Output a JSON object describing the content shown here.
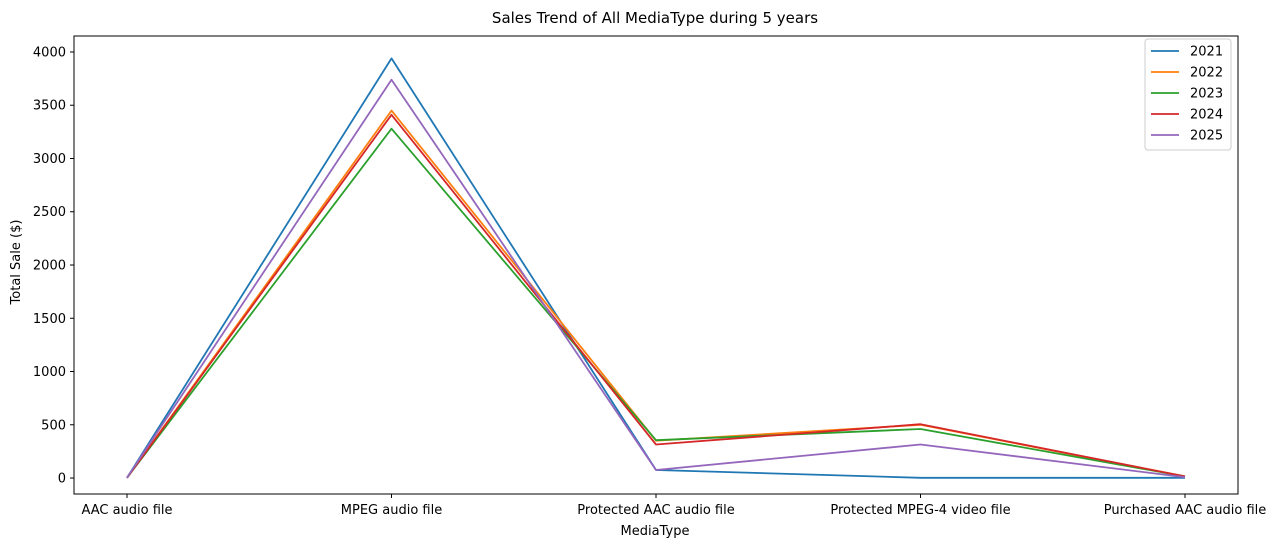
{
  "chart_data": {
    "type": "line",
    "title": "Sales Trend of All MediaType during 5 years",
    "xlabel": "MediaType",
    "ylabel": "Total Sale ($)",
    "categories": [
      "AAC audio file",
      "MPEG audio file",
      "Protected AAC audio file",
      "Protected MPEG-4 video file",
      "Purchased AAC audio file"
    ],
    "ylim": [
      -150,
      4150
    ],
    "yticks": [
      0,
      500,
      1000,
      1500,
      2000,
      2500,
      3000,
      3500,
      4000
    ],
    "legend_position": "top-right",
    "grid": false,
    "series": [
      {
        "name": "2021",
        "color": "#1f77b4",
        "values": [
          2,
          3940,
          75,
          2,
          2
        ]
      },
      {
        "name": "2022",
        "color": "#ff7f0e",
        "values": [
          2,
          3450,
          350,
          500,
          15
        ]
      },
      {
        "name": "2023",
        "color": "#2ca02c",
        "values": [
          2,
          3280,
          355,
          460,
          15
        ]
      },
      {
        "name": "2024",
        "color": "#d62728",
        "values": [
          2,
          3410,
          315,
          505,
          15
        ]
      },
      {
        "name": "2025",
        "color": "#9467bd",
        "values": [
          2,
          3740,
          75,
          315,
          8
        ]
      }
    ]
  }
}
